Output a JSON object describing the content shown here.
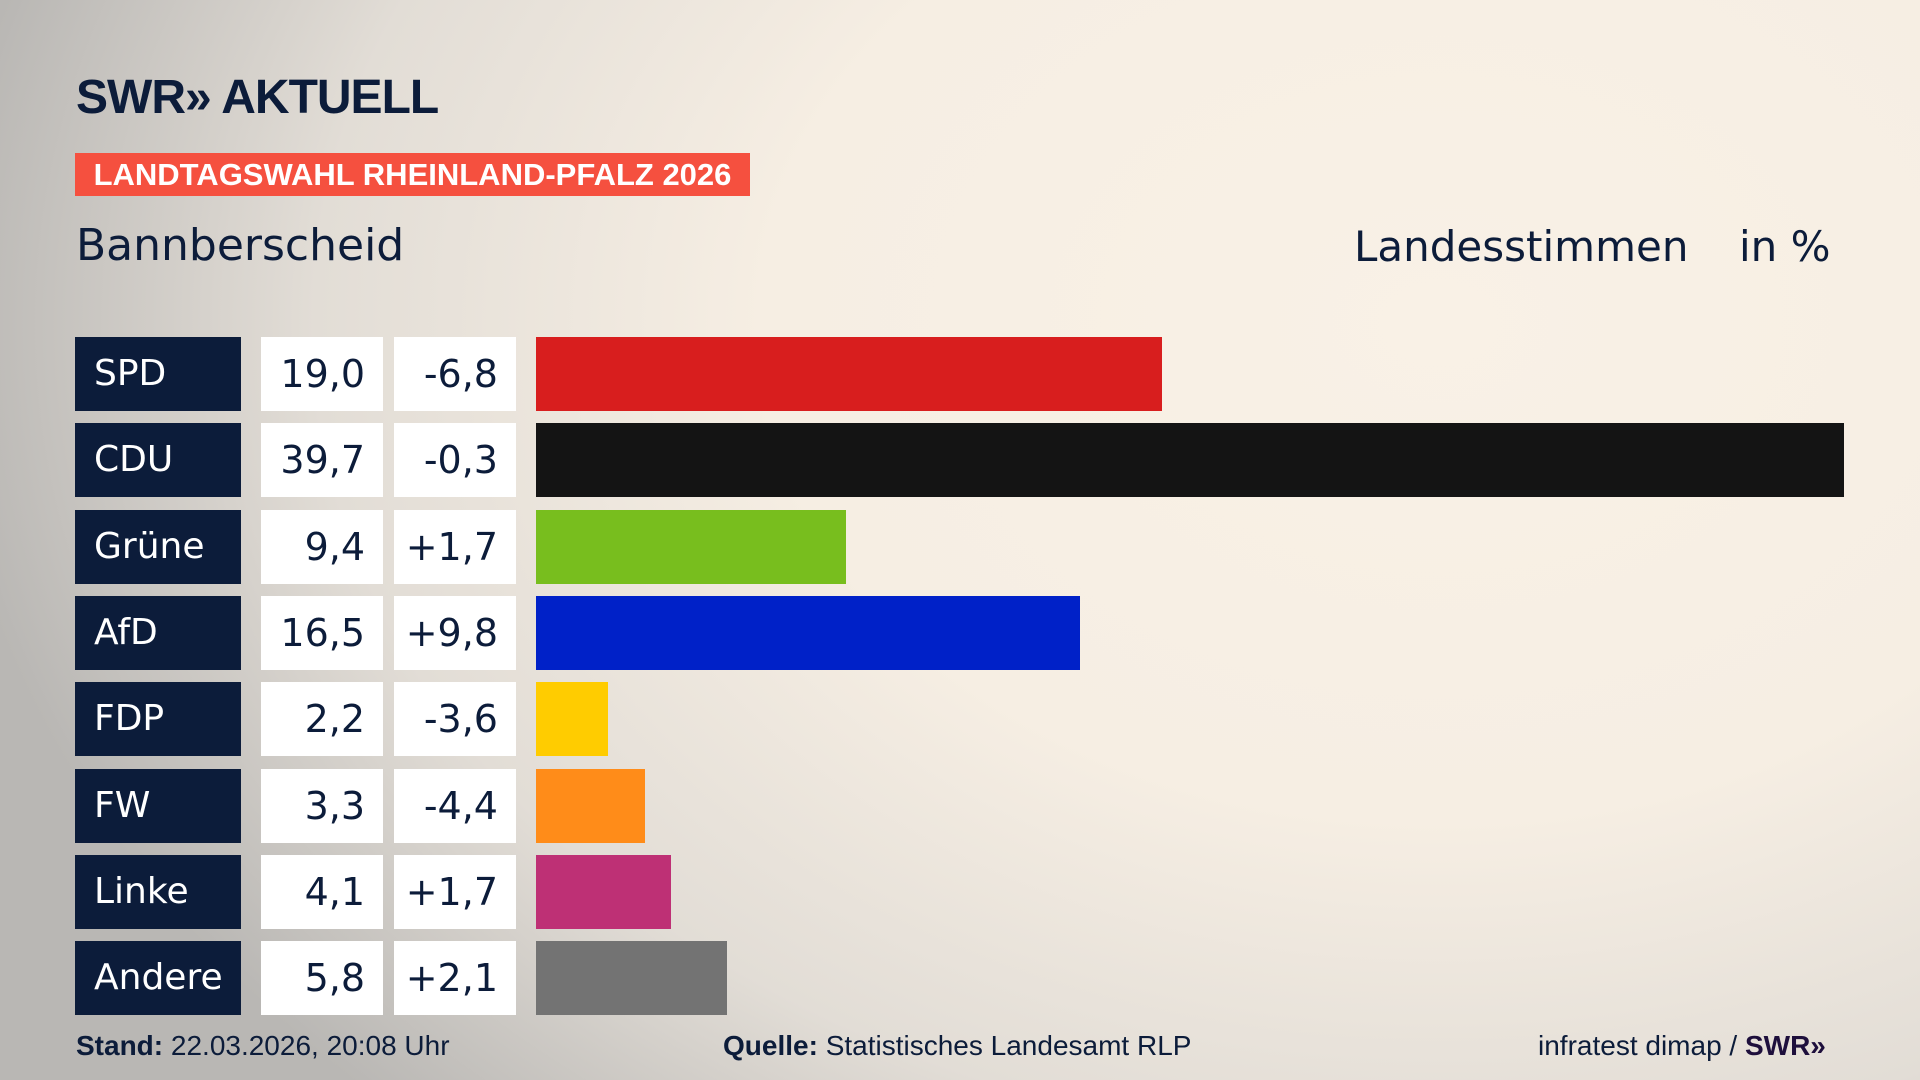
{
  "header": {
    "logo": "SWR» AKTUELL",
    "banner": "LANDTAGSWAHL RHEINLAND-PFALZ 2026",
    "place": "Bannberscheid",
    "vote_type": "Landesstimmen",
    "unit": "in %"
  },
  "chart_data": {
    "type": "bar",
    "orientation": "horizontal",
    "categories": [
      "SPD",
      "CDU",
      "Grüne",
      "AfD",
      "FDP",
      "FW",
      "Linke",
      "Andere"
    ],
    "values": [
      "19,0",
      "39,7",
      "9,4",
      "16,5",
      "2,2",
      "3,3",
      "4,1",
      "5,8"
    ],
    "numeric_values": [
      19.0,
      39.7,
      9.4,
      16.5,
      2.2,
      3.3,
      4.1,
      5.8
    ],
    "changes": [
      "-6,8",
      "-0,3",
      "+1,7",
      "+9,8",
      "-3,6",
      "-4,4",
      "+1,7",
      "+2,1"
    ],
    "colors": [
      "#d81e1e",
      "#141414",
      "#78be1e",
      "#0021c8",
      "#ffcc00",
      "#ff8c19",
      "#be3075",
      "#737373"
    ],
    "xlim": [
      0,
      39.7
    ],
    "grid": false
  },
  "footer": {
    "stand_label": "Stand:",
    "stand_value": "22.03.2026, 20:08 Uhr",
    "source_label": "Quelle:",
    "source_value": "Statistisches Landesamt RLP",
    "credit": "infratest dimap /",
    "credit_logo": "SWR»"
  }
}
